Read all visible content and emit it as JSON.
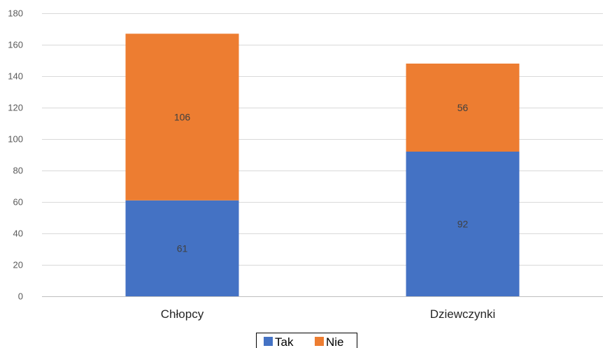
{
  "chart_data": {
    "type": "bar",
    "stacked": true,
    "categories": [
      "Chłopcy",
      "Dziewczynki"
    ],
    "series": [
      {
        "name": "Tak",
        "values": [
          61,
          92
        ],
        "color": "#4472C4"
      },
      {
        "name": "Nie",
        "values": [
          106,
          56
        ],
        "color": "#ED7D31"
      }
    ],
    "ylim": [
      0,
      180
    ],
    "y_ticks": [
      0,
      20,
      40,
      60,
      80,
      100,
      120,
      140,
      160,
      180
    ],
    "grid": true,
    "data_labels": true,
    "legend_position": "bottom"
  },
  "colors": {
    "grid": "#D9D9D9",
    "axis": "#BFBFBF"
  }
}
